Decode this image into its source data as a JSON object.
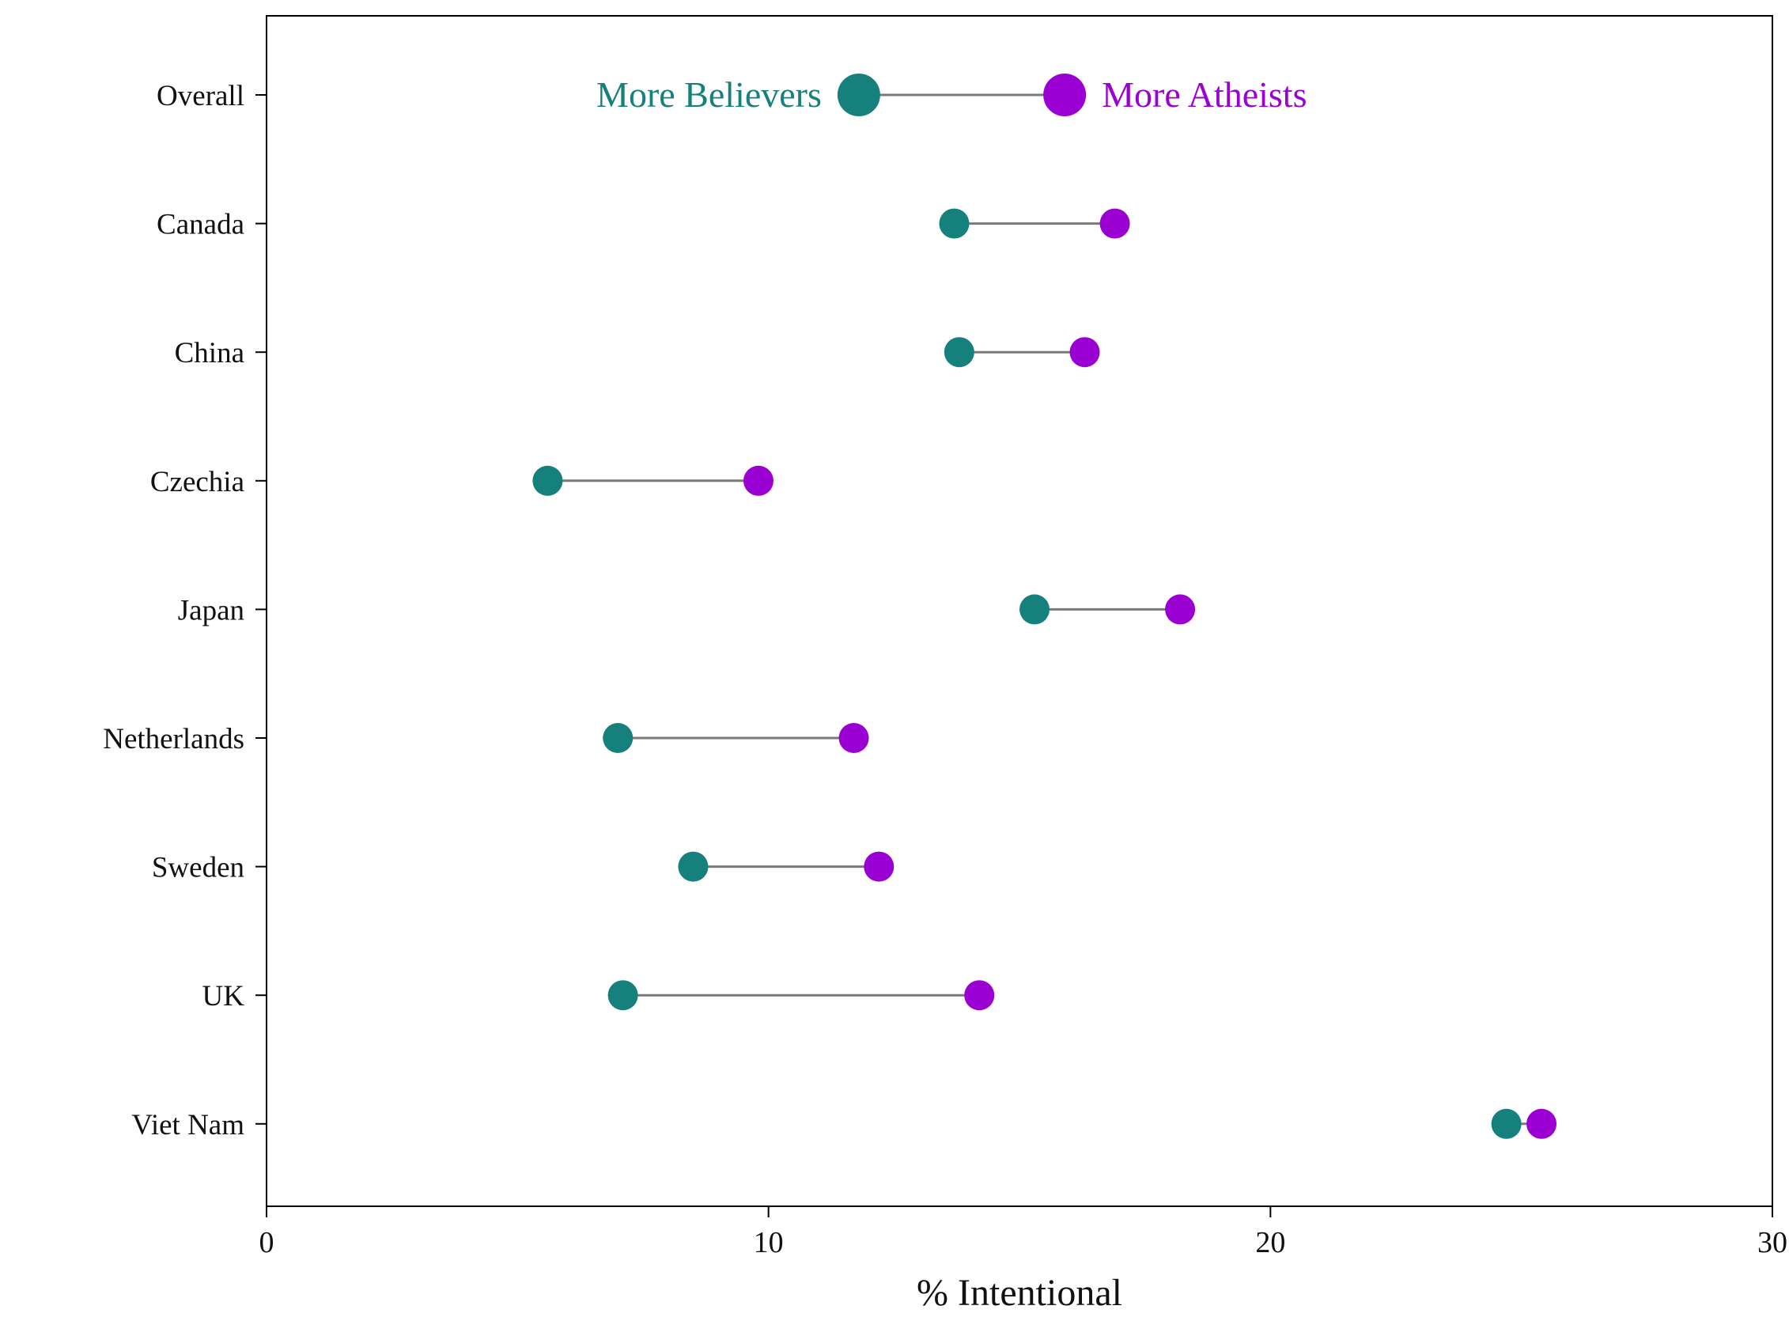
{
  "chart_data": {
    "type": "dumbbell",
    "title": "",
    "xlabel": "% Intentional",
    "xlim": [
      0,
      30
    ],
    "xticks": [
      0,
      10,
      20,
      30
    ],
    "grid": false,
    "legend_position": "on-first-row",
    "categories": [
      "Overall",
      "Canada",
      "China",
      "Czechia",
      "Japan",
      "Netherlands",
      "Sweden",
      "UK",
      "Viet Nam"
    ],
    "series": [
      {
        "name": "More Believers",
        "color": "#15807c",
        "values": [
          11.8,
          13.7,
          13.8,
          5.6,
          15.3,
          7.0,
          8.5,
          7.1,
          24.7
        ]
      },
      {
        "name": "More Atheists",
        "color": "#9b00d3",
        "values": [
          15.9,
          16.9,
          16.3,
          9.8,
          18.2,
          11.7,
          12.2,
          14.2,
          25.4
        ]
      }
    ],
    "legend": {
      "believers_label": "More Believers",
      "atheists_label": "More Atheists",
      "attached_to_category": "Overall"
    },
    "colors": {
      "believers": "#15807c",
      "atheists": "#9b00d3",
      "connector": "#7a7a7a",
      "axis": "#000000",
      "text": "#111111",
      "background": "#ffffff"
    }
  }
}
